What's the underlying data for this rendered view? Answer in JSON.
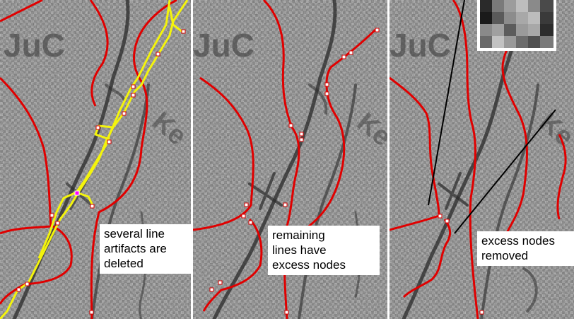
{
  "panels": [
    {
      "map_label_primary": "JuC",
      "map_label_secondary": "Ke",
      "caption": "several line\nartifacts are\ndeleted"
    },
    {
      "map_label_primary": "JuC",
      "map_label_secondary": "Ke",
      "caption": "remaining\nlines have\nexcess nodes"
    },
    {
      "map_label_primary": "JuC",
      "map_label_secondary": "Ke",
      "caption": "excess nodes\nremoved"
    }
  ],
  "colors": {
    "boundary_line": "#e00000",
    "artifact_line": "#f2f20a",
    "node_outline": "#d40000",
    "highlight_node": "#ff00ff",
    "pointer_line": "#000000"
  }
}
